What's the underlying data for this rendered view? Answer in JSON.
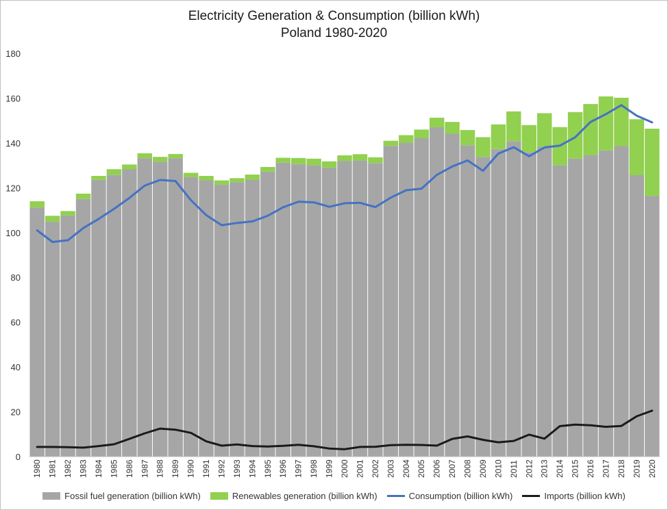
{
  "chart_data": {
    "type": "bar",
    "stacked": true,
    "title": "Electricity Generation & Consumption (billion kWh)",
    "subtitle": "Poland 1980-2020",
    "xlabel": "",
    "ylabel": "",
    "ylim": [
      0,
      180
    ],
    "yticks": [
      0,
      20,
      40,
      60,
      80,
      100,
      120,
      140,
      160,
      180
    ],
    "grid": false,
    "legend_position": "bottom",
    "categories": [
      "1980",
      "1981",
      "1982",
      "1983",
      "1984",
      "1985",
      "1986",
      "1987",
      "1988",
      "1989",
      "1990",
      "1991",
      "1992",
      "1993",
      "1994",
      "1995",
      "1996",
      "1997",
      "1998",
      "1999",
      "2000",
      "2001",
      "2002",
      "2003",
      "2004",
      "2005",
      "2006",
      "2007",
      "2008",
      "2009",
      "2010",
      "2011",
      "2012",
      "2013",
      "2014",
      "2015",
      "2016",
      "2017",
      "2018",
      "2019",
      "2020"
    ],
    "series": [
      {
        "name": "Fossil fuel generation (billion kWh)",
        "kind": "bar",
        "color": "#a6a6a6",
        "values": [
          111.2,
          104.8,
          107.6,
          115.0,
          123.5,
          125.7,
          128.2,
          133.2,
          131.6,
          133.2,
          124.8,
          123.3,
          121.3,
          122.5,
          123.6,
          127.2,
          131.2,
          130.6,
          130.1,
          129.0,
          132.0,
          132.2,
          131.0,
          138.7,
          140.1,
          142.1,
          147.0,
          144.1,
          139.0,
          133.8,
          137.3,
          140.8,
          135.9,
          138.3,
          130.0,
          133.0,
          134.6,
          136.7,
          138.6,
          125.6,
          116.4
        ]
      },
      {
        "name": "Renewables generation (billion kWh)",
        "kind": "bar",
        "color": "#92d050",
        "values": [
          2.8,
          2.7,
          2.0,
          2.4,
          1.8,
          2.6,
          2.2,
          2.2,
          2.2,
          1.9,
          1.9,
          2.0,
          2.0,
          1.8,
          2.3,
          2.1,
          2.2,
          2.7,
          2.9,
          2.8,
          2.5,
          2.8,
          2.6,
          2.3,
          3.4,
          3.9,
          4.3,
          5.3,
          6.8,
          8.8,
          11.0,
          13.3,
          12.1,
          15.0,
          17.1,
          20.8,
          22.8,
          24.1,
          21.6,
          25.0,
          30.0
        ]
      },
      {
        "name": "Consumption (billion kWh)",
        "kind": "line",
        "color": "#4472c4",
        "values": [
          101.0,
          95.8,
          96.6,
          102.0,
          106.1,
          110.6,
          115.5,
          121.0,
          123.5,
          123.0,
          114.5,
          107.8,
          103.3,
          104.3,
          105.0,
          107.5,
          111.3,
          113.8,
          113.5,
          111.5,
          113.1,
          113.3,
          111.4,
          115.6,
          118.9,
          119.6,
          125.8,
          129.5,
          132.2,
          127.6,
          135.3,
          138.1,
          134.1,
          138.0,
          138.8,
          142.6,
          149.4,
          152.9,
          156.9,
          152.2,
          149.2
        ]
      },
      {
        "name": "Imports (billion kWh)",
        "kind": "line",
        "color": "#1a1a1a",
        "values": [
          4.3,
          4.3,
          4.2,
          4.0,
          4.7,
          5.5,
          7.9,
          10.4,
          12.5,
          12.0,
          10.6,
          6.8,
          4.9,
          5.4,
          4.7,
          4.5,
          4.8,
          5.3,
          4.6,
          3.6,
          3.3,
          4.3,
          4.4,
          5.1,
          5.3,
          5.2,
          4.9,
          7.9,
          9.0,
          7.5,
          6.4,
          7.0,
          9.8,
          8.0,
          13.6,
          14.3,
          14.0,
          13.3,
          13.7,
          18.0,
          20.5
        ]
      }
    ]
  }
}
